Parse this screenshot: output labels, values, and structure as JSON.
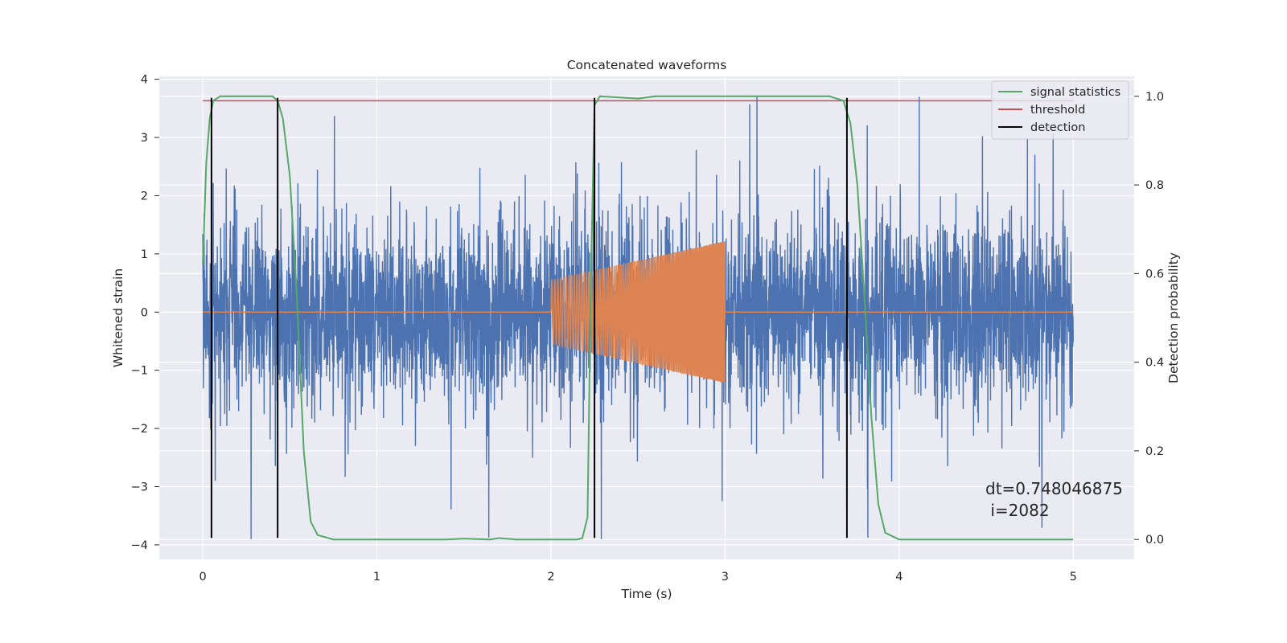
{
  "chart_data": {
    "type": "line",
    "title": "Concatenated waveforms",
    "xlabel": "Time (s)",
    "ylabel": "Whitened strain",
    "y2label": "Detection probability",
    "xlim": [
      -0.25,
      5.35
    ],
    "ylim": [
      -4.25,
      4.05
    ],
    "y2lim": [
      -0.045,
      1.045
    ],
    "xticks": [
      "0",
      "1",
      "2",
      "3",
      "4",
      "5"
    ],
    "yticks": [
      "−4",
      "−3",
      "−2",
      "−1",
      "0",
      "1",
      "2",
      "3",
      "4"
    ],
    "y2ticks": [
      "0.0",
      "0.2",
      "0.4",
      "0.6",
      "0.8",
      "1.0"
    ],
    "grid": true,
    "legend_position": "top-right",
    "series": [
      {
        "name": "",
        "role": "noisy whitened strain",
        "color": "#4c72b0",
        "x_range": [
          0,
          5
        ],
        "typical_amplitude": 0.75,
        "peak_range": [
          -3.9,
          3.7
        ]
      },
      {
        "name": "",
        "role": "injected chirp signal",
        "color": "#dd8452",
        "x_range": [
          2.0,
          3.0
        ],
        "amplitude_start": 0.55,
        "amplitude_end": 1.22
      },
      {
        "name": "signal statistics",
        "color": "#55a868",
        "axis": "right",
        "x": [
          0,
          0.02,
          0.04,
          0.06,
          0.1,
          0.15,
          0.4,
          0.43,
          0.46,
          0.5,
          0.54,
          0.58,
          0.62,
          0.66,
          0.75,
          1.4,
          1.5,
          1.65,
          1.7,
          1.8,
          2.15,
          2.18,
          2.21,
          2.23,
          2.25,
          2.28,
          2.5,
          2.6,
          3.6,
          3.68,
          3.72,
          3.76,
          3.8,
          3.84,
          3.88,
          3.92,
          4.0,
          5.0
        ],
        "y": [
          0.62,
          0.85,
          0.95,
          0.99,
          1.0,
          1.0,
          1.0,
          0.99,
          0.95,
          0.82,
          0.55,
          0.2,
          0.04,
          0.01,
          0.0,
          0.0,
          0.002,
          0.0,
          0.003,
          0.0,
          0.0,
          0.003,
          0.05,
          0.6,
          0.98,
          1.0,
          0.995,
          1.0,
          1.0,
          0.99,
          0.94,
          0.8,
          0.55,
          0.28,
          0.08,
          0.015,
          0.0,
          0.0
        ]
      },
      {
        "name": "threshold",
        "color": "#c44e52",
        "axis": "right",
        "x": [
          0,
          5
        ],
        "y": [
          0.99,
          0.99
        ]
      },
      {
        "name": "detection",
        "color": "#000000",
        "type": "vlines",
        "x": [
          0.05,
          0.43,
          2.25,
          3.7
        ],
        "ymin": -3.88,
        "ymax": 3.68
      }
    ],
    "annotation": {
      "line1": "dt=0.748046875",
      "line2": " i=2082"
    }
  }
}
